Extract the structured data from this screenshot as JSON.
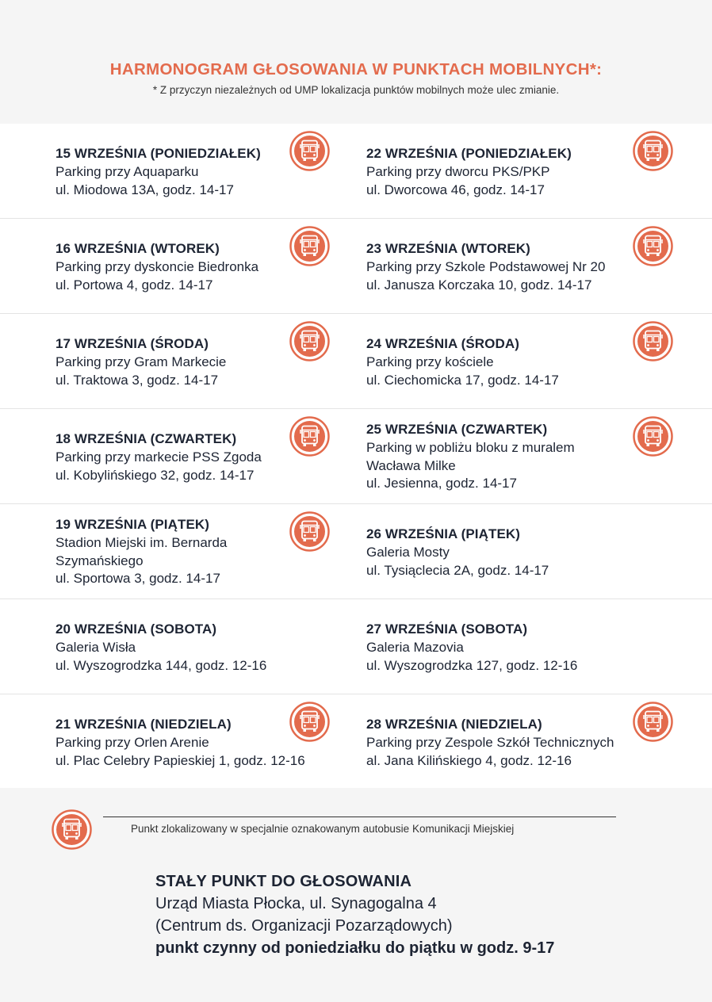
{
  "header": {
    "title": "HARMONOGRAM GŁOSOWANIA W PUNKTACH MOBILNYCH*:",
    "note": "* Z przyczyn niezależnych od UMP lokalizacja punktów mobilnych może ulec zmianie."
  },
  "icon_semantic": "bus-icon",
  "accent_color": "#e36b4d",
  "schedule": [
    {
      "left": {
        "date": "15 WRZEŚNIA (PONIEDZIAŁEK)",
        "lines": [
          "Parking przy Aquaparku",
          "ul. Miodowa 13A, godz. 14-17"
        ],
        "bus": true
      },
      "right": {
        "date": "22 WRZEŚNIA (PONIEDZIAŁEK)",
        "lines": [
          "Parking przy dworcu PKS/PKP",
          "ul. Dworcowa 46, godz. 14-17"
        ],
        "bus": true
      }
    },
    {
      "left": {
        "date": "16 WRZEŚNIA (WTOREK)",
        "lines": [
          "Parking przy dyskoncie Biedronka",
          "ul. Portowa 4, godz. 14-17"
        ],
        "bus": true
      },
      "right": {
        "date": "23 WRZEŚNIA (WTOREK)",
        "lines": [
          "Parking przy Szkole Podstawowej Nr 20",
          "ul. Janusza Korczaka 10, godz. 14-17"
        ],
        "bus": true
      }
    },
    {
      "left": {
        "date": "17 WRZEŚNIA (ŚRODA)",
        "lines": [
          "Parking przy Gram Markecie",
          "ul. Traktowa 3, godz. 14-17"
        ],
        "bus": true
      },
      "right": {
        "date": "24 WRZEŚNIA (ŚRODA)",
        "lines": [
          "Parking przy kościele",
          "ul. Ciechomicka 17, godz. 14-17"
        ],
        "bus": true
      }
    },
    {
      "left": {
        "date": "18 WRZEŚNIA (CZWARTEK)",
        "lines": [
          "Parking przy markecie PSS Zgoda",
          "ul. Kobylińskiego 32, godz. 14-17"
        ],
        "bus": true
      },
      "right": {
        "date": "25 WRZEŚNIA (CZWARTEK)",
        "lines": [
          "Parking w pobliżu bloku z muralem",
          "Wacława Milke",
          "ul. Jesienna, godz. 14-17"
        ],
        "bus": true
      }
    },
    {
      "left": {
        "date": "19 WRZEŚNIA (PIĄTEK)",
        "lines": [
          "Stadion Miejski im. Bernarda",
          "Szymańskiego",
          "ul. Sportowa 3, godz. 14-17"
        ],
        "bus": true
      },
      "right": {
        "date": "26 WRZEŚNIA (PIĄTEK)",
        "lines": [
          "Galeria Mosty",
          "ul. Tysiąclecia 2A, godz. 14-17"
        ],
        "bus": false
      }
    },
    {
      "left": {
        "date": "20 WRZEŚNIA (SOBOTA)",
        "lines": [
          "Galeria Wisła",
          "ul. Wyszogrodzka 144, godz. 12-16"
        ],
        "bus": false
      },
      "right": {
        "date": "27 WRZEŚNIA (SOBOTA)",
        "lines": [
          "Galeria Mazovia",
          "ul. Wyszogrodzka 127, godz. 12-16"
        ],
        "bus": false
      }
    },
    {
      "left": {
        "date": "21 WRZEŚNIA (NIEDZIELA)",
        "lines": [
          "Parking przy Orlen Arenie",
          "ul. Plac Celebry Papieskiej 1, godz. 12-16"
        ],
        "bus": true
      },
      "right": {
        "date": "28 WRZEŚNIA (NIEDZIELA)",
        "lines": [
          "Parking przy Zespole Szkół Technicznych",
          "al. Jana Kilińskiego 4, godz. 12-16"
        ],
        "bus": true
      }
    }
  ],
  "legend": {
    "text": "Punkt zlokalizowany w specjalnie oznakowanym autobusie Komunikacji Miejskiej"
  },
  "permanent": {
    "title": "STAŁY PUNKT DO GŁOSOWANIA",
    "address": "Urząd Miasta Płocka, ul. Synagogalna 4",
    "detail": "(Centrum ds. Organizacji Pozarządowych)",
    "hours": "punkt czynny od poniedziałku do piątku w godz. 9-17"
  }
}
